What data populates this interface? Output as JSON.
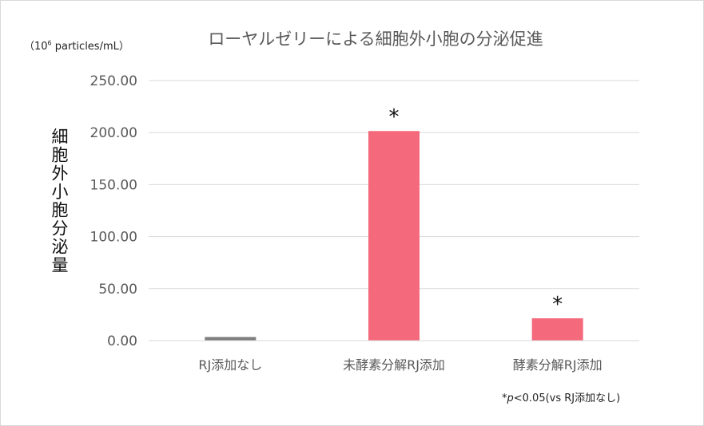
{
  "chart_data": {
    "type": "bar",
    "title": "ローヤルゼリーによる細胞外小胞の分泌促進",
    "unit_prefix": "（10",
    "unit_exp": "6",
    "unit_suffix": " particles/mL）",
    "ylabel": "細胞外小胞分泌量",
    "categories": [
      "RJ添加なし",
      "未酵素分解RJ添加",
      "酵素分解RJ添加"
    ],
    "values": [
      3.5,
      201.5,
      21.5
    ],
    "bar_colors": [
      "#7f7f7f",
      "#f4697b",
      "#f4697b"
    ],
    "significance": [
      "",
      "*",
      "*"
    ],
    "ylim": [
      0,
      250
    ],
    "yticks": [
      "0.00",
      "50.00",
      "100.00",
      "150.00",
      "200.00",
      "250.00"
    ],
    "ytick_values": [
      0,
      50,
      100,
      150,
      200,
      250
    ],
    "grid": true,
    "gridline_color": "#d9d9d9",
    "footnote": {
      "star": "*",
      "p": "p",
      "rest": "<0.05(vs RJ添加なし)"
    }
  }
}
